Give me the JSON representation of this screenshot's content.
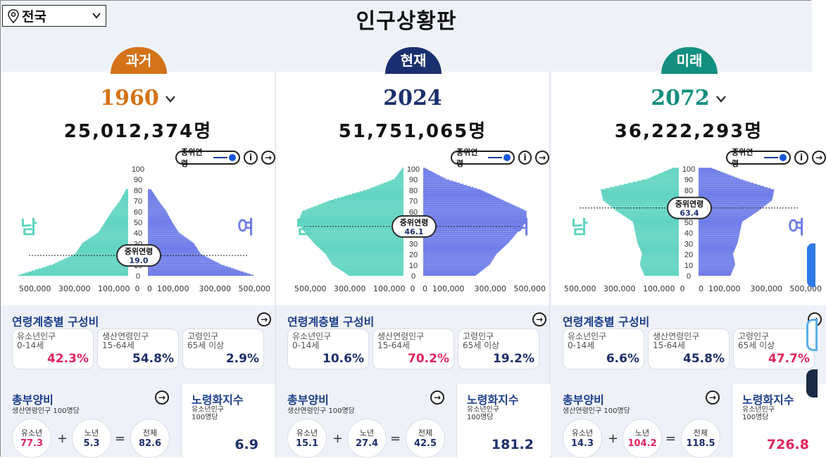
{
  "header": {
    "region": "전국",
    "title": "인구상황판"
  },
  "colors": {
    "past": "#d47217",
    "present": "#1a2f6e",
    "future": "#138f7f",
    "male": "#5fd4c0",
    "female": "#6f7ce8",
    "pink": "#e0245e",
    "navy": "#1d2f6b"
  },
  "columns": [
    {
      "tab": "과거",
      "year": "1960",
      "has_dropdown": true,
      "population": "25,012,374명",
      "median_toggle": "중위연령",
      "median_label": "중위연령",
      "median_age": "19.0",
      "male": "남",
      "female": "여",
      "axis_left": [
        "500,000",
        "300,000",
        "100,000",
        "0"
      ],
      "axis_right": [
        "0",
        "100,000",
        "300,000",
        "500,000"
      ],
      "age_ticks": [
        "100",
        "90",
        "80",
        "70",
        "60",
        "50",
        "40",
        "30",
        "20",
        "10",
        "0"
      ],
      "composition_title": "연령계층별 구성비",
      "cards": [
        {
          "label": "유소년인구",
          "range": "0-14세",
          "value": "42.3%",
          "hi": true
        },
        {
          "label": "생산연령인구",
          "range": "15-64세",
          "value": "54.8%",
          "hi": false
        },
        {
          "label": "고령인구",
          "range": "65세 이상",
          "value": "2.9%",
          "hi": false
        }
      ],
      "dependency_title": "총부양비",
      "dependency_sub": "생산연령인구 100명당",
      "youth_label": "유소년",
      "youth_value": "77.3",
      "youth_hi": true,
      "old_label": "노년",
      "old_value": "5.3",
      "old_hi": false,
      "total_label": "전체",
      "total_value": "82.6",
      "aging_title": "노령화지수",
      "aging_sub1": "유소년인구",
      "aging_sub2": "100명당",
      "aging_value": "6.9",
      "aging_hi": false
    },
    {
      "tab": "현재",
      "year": "2024",
      "has_dropdown": false,
      "population": "51,751,065명",
      "median_toggle": "중위연령",
      "median_label": "중위연령",
      "median_age": "46.1",
      "male": "남",
      "female": "여",
      "axis_left": [
        "500,000",
        "300,000",
        "100,000",
        "0"
      ],
      "axis_right": [
        "0",
        "100,000",
        "300,000",
        "500,000"
      ],
      "age_ticks": [
        "100",
        "90",
        "80",
        "70",
        "60",
        "50",
        "40",
        "30",
        "20",
        "10",
        "0"
      ],
      "composition_title": "연령계층별 구성비",
      "cards": [
        {
          "label": "유소년인구",
          "range": "0-14세",
          "value": "10.6%",
          "hi": false
        },
        {
          "label": "생산연령인구",
          "range": "15-64세",
          "value": "70.2%",
          "hi": true
        },
        {
          "label": "고령인구",
          "range": "65세 이상",
          "value": "19.2%",
          "hi": false
        }
      ],
      "dependency_title": "총부양비",
      "dependency_sub": "생산연령인구 100명당",
      "youth_label": "유소년",
      "youth_value": "15.1",
      "youth_hi": false,
      "old_label": "노년",
      "old_value": "27.4",
      "old_hi": false,
      "total_label": "전체",
      "total_value": "42.5",
      "aging_title": "노령화지수",
      "aging_sub1": "유소년인구",
      "aging_sub2": "100명당",
      "aging_value": "181.2",
      "aging_hi": false
    },
    {
      "tab": "미래",
      "year": "2072",
      "has_dropdown": true,
      "population": "36,222,293명",
      "median_toggle": "중위연령",
      "median_label": "중위연령",
      "median_age": "63.4",
      "male": "남",
      "female": "여",
      "axis_left": [
        "500,000",
        "300,000",
        "100,000",
        "0"
      ],
      "axis_right": [
        "0",
        "100,000",
        "300,000",
        "500,000"
      ],
      "age_ticks": [
        "100",
        "90",
        "80",
        "70",
        "60",
        "50",
        "40",
        "30",
        "20",
        "10",
        "0"
      ],
      "composition_title": "연령계층별 구성비",
      "cards": [
        {
          "label": "유소년인구",
          "range": "0-14세",
          "value": "6.6%",
          "hi": false
        },
        {
          "label": "생산연령인구",
          "range": "15-64세",
          "value": "45.8%",
          "hi": false
        },
        {
          "label": "고령인구",
          "range": "65세 이상",
          "value": "47.7%",
          "hi": true
        }
      ],
      "dependency_title": "총부양비",
      "dependency_sub": "생산연령인구 100명당",
      "youth_label": "유소년",
      "youth_value": "14.3",
      "youth_hi": false,
      "old_label": "노년",
      "old_value": "104.2",
      "old_hi": true,
      "total_label": "전체",
      "total_value": "118.5",
      "aging_title": "노령화지수",
      "aging_sub1": "유소년인구",
      "aging_sub2": "100명당",
      "aging_value": "726.8",
      "aging_hi": true
    }
  ],
  "chart_data": [
    {
      "type": "bar",
      "orientation": "horizontal-population-pyramid",
      "x_ticks": [
        "500,000",
        "300,000",
        "100,000",
        "0",
        "0",
        "100,000",
        "300,000",
        "500,000"
      ],
      "age_ticks": [
        0,
        10,
        20,
        30,
        40,
        50,
        60,
        70,
        80,
        90,
        100
      ],
      "xlim": [
        -500000,
        500000
      ],
      "median_age": 19.0,
      "ages": [
        0,
        10,
        20,
        30,
        40,
        50,
        60,
        70,
        80
      ],
      "series": [
        {
          "name": "남",
          "values": [
            480000,
            330000,
            230000,
            200000,
            130000,
            100000,
            70000,
            35000,
            10000
          ]
        },
        {
          "name": "여",
          "values": [
            460000,
            320000,
            230000,
            200000,
            135000,
            105000,
            80000,
            45000,
            15000
          ]
        }
      ]
    },
    {
      "type": "bar",
      "orientation": "horizontal-population-pyramid",
      "x_ticks": [
        "500,000",
        "300,000",
        "100,000",
        "0",
        "0",
        "100,000",
        "300,000",
        "500,000"
      ],
      "age_ticks": [
        0,
        10,
        20,
        30,
        40,
        50,
        60,
        70,
        80,
        90,
        100
      ],
      "xlim": [
        -500000,
        500000
      ],
      "median_age": 46.1,
      "ages": [
        0,
        10,
        20,
        30,
        40,
        50,
        60,
        70,
        80,
        90,
        100
      ],
      "series": [
        {
          "name": "남",
          "values": [
            240000,
            310000,
            340000,
            390000,
            430000,
            460000,
            440000,
            320000,
            160000,
            40000,
            5000
          ]
        },
        {
          "name": "여",
          "values": [
            230000,
            290000,
            320000,
            370000,
            410000,
            450000,
            450000,
            350000,
            250000,
            100000,
            10000
          ]
        }
      ]
    },
    {
      "type": "bar",
      "orientation": "horizontal-population-pyramid",
      "x_ticks": [
        "500,000",
        "300,000",
        "100,000",
        "0",
        "0",
        "100,000",
        "300,000",
        "500,000"
      ],
      "age_ticks": [
        0,
        10,
        20,
        30,
        40,
        50,
        60,
        70,
        80,
        90,
        100
      ],
      "xlim": [
        -500000,
        500000
      ],
      "median_age": 63.4,
      "ages": [
        0,
        10,
        20,
        30,
        40,
        50,
        60,
        70,
        80,
        90,
        100
      ],
      "series": [
        {
          "name": "남",
          "values": [
            150000,
            170000,
            160000,
            180000,
            190000,
            200000,
            270000,
            330000,
            340000,
            140000,
            30000
          ]
        },
        {
          "name": "여",
          "values": [
            140000,
            160000,
            150000,
            170000,
            180000,
            190000,
            260000,
            320000,
            330000,
            180000,
            60000
          ]
        }
      ]
    }
  ]
}
